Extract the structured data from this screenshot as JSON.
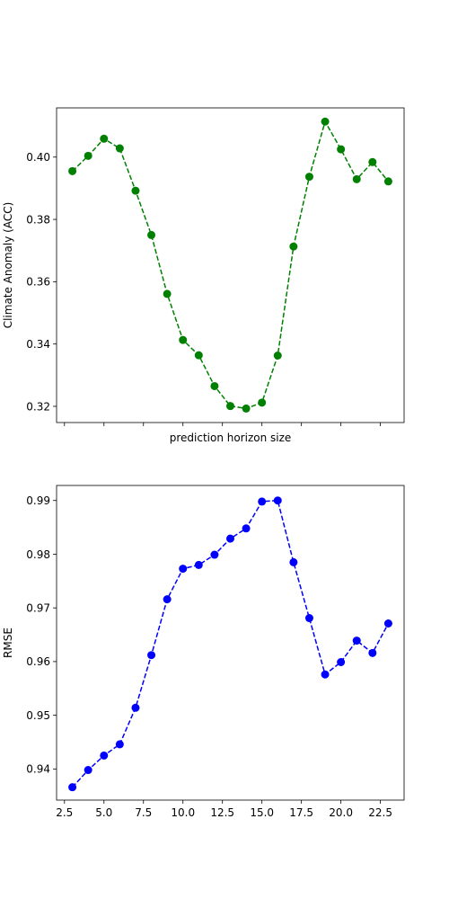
{
  "chart_data": [
    {
      "type": "line",
      "title": "",
      "xlabel": "prediction horizon size",
      "ylabel": "Climate Anomaly (ACC)",
      "xlim": [
        2.0,
        24.0
      ],
      "ylim": [
        0.3148,
        0.4158
      ],
      "x_ticks": [
        2.5,
        5.0,
        7.5,
        10.0,
        12.5,
        15.0,
        17.5,
        20.0,
        22.5
      ],
      "x_tick_labels_visible": false,
      "y_ticks": [
        0.32,
        0.34,
        0.36,
        0.38,
        0.4
      ],
      "y_tick_labels": [
        "0.32",
        "0.34",
        "0.36",
        "0.38",
        "0.40"
      ],
      "grid": false,
      "series": [
        {
          "color": "#008000",
          "linestyle": "dashed",
          "marker": "circle",
          "x": [
            3,
            4,
            5,
            6,
            7,
            8,
            9,
            10,
            11,
            12,
            13,
            14,
            15,
            16,
            17,
            18,
            19,
            20,
            21,
            22,
            23
          ],
          "values": [
            0.3955,
            0.4004,
            0.4059,
            0.4028,
            0.3892,
            0.375,
            0.3561,
            0.3413,
            0.3364,
            0.3265,
            0.3201,
            0.3193,
            0.3212,
            0.3363,
            0.3713,
            0.3937,
            0.4114,
            0.4025,
            0.3929,
            0.3984,
            0.3922
          ]
        }
      ]
    },
    {
      "type": "line",
      "title": "",
      "xlabel": "",
      "ylabel": "RMSE",
      "xlim": [
        2.0,
        24.0
      ],
      "ylim": [
        0.9342,
        0.9928
      ],
      "x_ticks": [
        2.5,
        5.0,
        7.5,
        10.0,
        12.5,
        15.0,
        17.5,
        20.0,
        22.5
      ],
      "x_tick_labels": [
        "2.5",
        "5.0",
        "7.5",
        "10.0",
        "12.5",
        "15.0",
        "17.5",
        "20.0",
        "22.5"
      ],
      "y_ticks": [
        0.94,
        0.95,
        0.96,
        0.97,
        0.98,
        0.99
      ],
      "y_tick_labels": [
        "0.94",
        "0.95",
        "0.96",
        "0.97",
        "0.98",
        "0.99"
      ],
      "grid": false,
      "series": [
        {
          "color": "#0000ff",
          "linestyle": "dashed",
          "marker": "circle",
          "x": [
            3,
            4,
            5,
            6,
            7,
            8,
            9,
            10,
            11,
            12,
            13,
            14,
            15,
            16,
            17,
            18,
            19,
            20,
            21,
            22,
            23
          ],
          "values": [
            0.9366,
            0.9398,
            0.9425,
            0.9446,
            0.9514,
            0.9612,
            0.9716,
            0.9773,
            0.978,
            0.9799,
            0.9829,
            0.9848,
            0.9898,
            0.99,
            0.9785,
            0.9681,
            0.9576,
            0.9599,
            0.9639,
            0.9616,
            0.9671
          ]
        }
      ]
    }
  ]
}
